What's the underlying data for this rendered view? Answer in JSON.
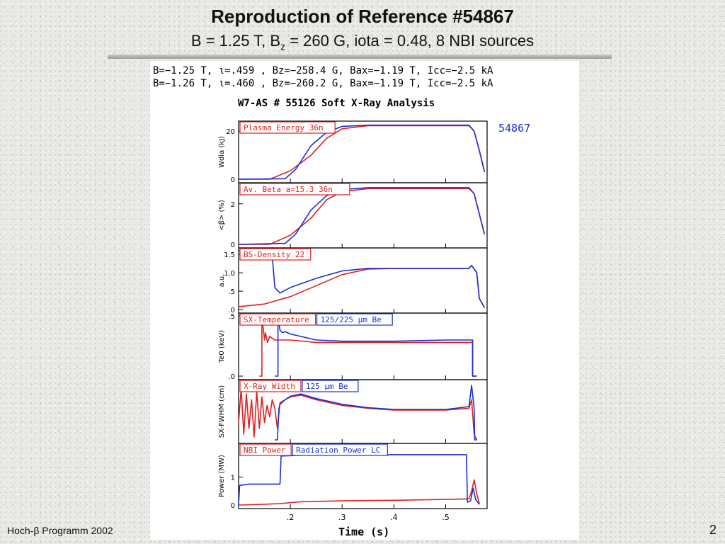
{
  "slide": {
    "title": "Reproduction of Reference #54867",
    "subtitle_main": "B = 1.25 T, B",
    "subtitle_sub": "z",
    "subtitle_rest": " = 260 G, iota = 0.48, 8 NBI sources",
    "footer_left": "Hoch-β Programm 2002",
    "page_number": "2"
  },
  "figure": {
    "param_line1": "B=−1.25 T, ι=.459   , Bz=−258.4 G, Bax=−1.19  T, Icc=−2.5   kA",
    "param_line2": "B=−1.26 T, ι=.460   , Bz=−260.2 G, Bax=−1.19  T, Icc=−2.5   kA",
    "header": "W7-AS # 55126  Soft X-Ray Analysis",
    "reference_shot": "54867",
    "xlabel": "Time (s)"
  },
  "colors": {
    "shot_55126": "#e02020",
    "ref_54867": "#1a2fd6",
    "axis": "#000000"
  },
  "chart_data": {
    "type": "line",
    "xlim": [
      0.1,
      0.58
    ],
    "x_ticks": [
      ".2",
      ".3",
      ".4",
      ".5"
    ],
    "x_tick_values": [
      0.2,
      0.3,
      0.4,
      0.5
    ],
    "panels": [
      {
        "key": "energy",
        "ylabel": "Wdia (kJ)",
        "ylim": [
          0,
          23
        ],
        "y_ticks": [
          {
            "label": "0",
            "value": 0
          },
          {
            "label": "20",
            "value": 20
          }
        ],
        "labels": [
          {
            "text": "Plasma Energy  36n",
            "color": "#e02020"
          }
        ],
        "series": [
          {
            "color": "#e02020",
            "x": [
              0.1,
              0.16,
              0.2,
              0.24,
              0.27,
              0.3,
              0.35,
              0.545,
              0.555,
              0.565,
              0.575
            ],
            "y": [
              0,
              0,
              3.5,
              10,
              17,
              21,
              22.3,
              22.3,
              20,
              12,
              3
            ]
          },
          {
            "color": "#1a2fd6",
            "x": [
              0.1,
              0.19,
              0.21,
              0.24,
              0.27,
              0.3,
              0.35,
              0.545,
              0.555,
              0.565,
              0.575
            ],
            "y": [
              0,
              0.2,
              4,
              14,
              19.5,
              22,
              22.5,
              22.5,
              20,
              12,
              3
            ]
          }
        ]
      },
      {
        "key": "beta",
        "ylabel": "<β> (%)",
        "ylim": [
          0,
          2.9
        ],
        "y_ticks": [
          {
            "label": "0",
            "value": 0
          },
          {
            "label": "2",
            "value": 2
          }
        ],
        "labels": [
          {
            "text": "Av. Beta  a=15.3  36n",
            "color": "#e02020"
          }
        ],
        "series": [
          {
            "color": "#e02020",
            "x": [
              0.1,
              0.16,
              0.2,
              0.24,
              0.27,
              0.3,
              0.35,
              0.545,
              0.555,
              0.565,
              0.575
            ],
            "y": [
              0,
              0,
              0.45,
              1.3,
              2.2,
              2.6,
              2.75,
              2.75,
              2.5,
              1.5,
              0.5
            ]
          },
          {
            "color": "#1a2fd6",
            "x": [
              0.1,
              0.19,
              0.21,
              0.24,
              0.27,
              0.3,
              0.35,
              0.545,
              0.555,
              0.565,
              0.575
            ],
            "y": [
              0,
              0.05,
              0.5,
              1.7,
              2.4,
              2.7,
              2.8,
              2.8,
              2.5,
              1.5,
              0.5
            ]
          }
        ]
      },
      {
        "key": "density",
        "ylabel": "a.u.",
        "ylim": [
          0,
          1.6
        ],
        "y_ticks": [
          {
            "label": ".0",
            "value": 0
          },
          {
            "label": ".5",
            "value": 0.5
          },
          {
            "label": "1.0",
            "value": 1.0
          },
          {
            "label": "1.5",
            "value": 1.5
          }
        ],
        "labels": [
          {
            "text": "BS-Density 22",
            "color": "#e02020"
          }
        ],
        "series": [
          {
            "color": "#e02020",
            "x": [
              0.1,
              0.15,
              0.2,
              0.25,
              0.3,
              0.35,
              0.4,
              0.545,
              0.55,
              0.56,
              0.565,
              0.575
            ],
            "y": [
              0.08,
              0.15,
              0.35,
              0.65,
              0.95,
              1.1,
              1.12,
              1.12,
              1.2,
              1.0,
              0.3,
              0.05
            ]
          },
          {
            "color": "#1a2fd6",
            "x": [
              0.1,
              0.12,
              0.15,
              0.165,
              0.17,
              0.18,
              0.2,
              0.25,
              0.3,
              0.35,
              0.4,
              0.545,
              0.55,
              0.56,
              0.565,
              0.575
            ],
            "y": [
              1.6,
              1.55,
              1.5,
              1.45,
              0.6,
              0.45,
              0.6,
              0.85,
              1.05,
              1.12,
              1.12,
              1.12,
              1.2,
              1.0,
              0.3,
              0.05
            ]
          }
        ]
      },
      {
        "key": "temperature",
        "ylabel": "Te0 (keV)",
        "ylim": [
          0,
          0.5
        ],
        "y_ticks": [
          {
            "label": ".0",
            "value": 0
          },
          {
            "label": ".5",
            "value": 0.5
          }
        ],
        "labels": [
          {
            "text": "SX-Temperature",
            "color": "#e02020"
          },
          {
            "text": "125/225  μm Be",
            "color": "#1a2fd6"
          }
        ],
        "series": [
          {
            "color": "#e02020",
            "x": [
              0.14,
              0.145,
              0.145,
              0.15,
              0.152,
              0.156,
              0.16,
              0.17,
              0.2,
              0.25,
              0.3,
              0.4,
              0.5,
              0.552,
              0.552,
              0.56
            ],
            "y": [
              0,
              0,
              0.5,
              0.3,
              0.36,
              0.28,
              0.33,
              0.3,
              0.3,
              0.28,
              0.28,
              0.28,
              0.28,
              0.28,
              0,
              0
            ]
          },
          {
            "color": "#1a2fd6",
            "x": [
              0.17,
              0.176,
              0.176,
              0.18,
              0.185,
              0.19,
              0.2,
              0.25,
              0.3,
              0.4,
              0.5,
              0.552,
              0.552,
              0.56
            ],
            "y": [
              0,
              0,
              0.5,
              0.38,
              0.36,
              0.37,
              0.35,
              0.3,
              0.29,
              0.29,
              0.3,
              0.3,
              0,
              0
            ]
          }
        ]
      },
      {
        "key": "width",
        "ylabel": "SX-FWHM (cm)",
        "ylim": [
          0,
          1
        ],
        "y_ticks": [],
        "labels": [
          {
            "text": "X-Ray Width",
            "color": "#e02020"
          },
          {
            "text": "125  μm Be",
            "color": "#1a2fd6"
          }
        ],
        "series": [
          {
            "color": "#e02020",
            "x": [
              0.1,
              0.105,
              0.11,
              0.115,
              0.12,
              0.125,
              0.13,
              0.135,
              0.14,
              0.145,
              0.15,
              0.155,
              0.16,
              0.165,
              0.17,
              0.175,
              0.18,
              0.19,
              0.2,
              0.22,
              0.25,
              0.3,
              0.35,
              0.4,
              0.5,
              0.545,
              0.55,
              0.555,
              0.56
            ],
            "y": [
              0.3,
              0.9,
              0.1,
              0.8,
              0.2,
              0.7,
              0.05,
              0.85,
              0.2,
              0.75,
              0.3,
              0.6,
              0.4,
              0.7,
              0.55,
              0.2,
              0.65,
              0.7,
              0.75,
              0.78,
              0.7,
              0.6,
              0.55,
              0.52,
              0.52,
              0.55,
              0.7,
              0.1,
              0
            ]
          },
          {
            "color": "#1a2fd6",
            "x": [
              0.17,
              0.175,
              0.178,
              0.18,
              0.19,
              0.2,
              0.22,
              0.25,
              0.3,
              0.35,
              0.4,
              0.5,
              0.545,
              0.55,
              0.555,
              0.556,
              0.56
            ],
            "y": [
              0,
              0,
              0.55,
              0.62,
              0.7,
              0.76,
              0.8,
              0.72,
              0.62,
              0.56,
              0.53,
              0.53,
              0.58,
              0.95,
              0.55,
              0,
              0
            ]
          }
        ]
      },
      {
        "key": "power",
        "ylabel": "Power (MW)",
        "ylim": [
          0,
          2.1
        ],
        "y_ticks": [
          {
            "label": "0",
            "value": 0
          },
          {
            "label": "1",
            "value": 1
          }
        ],
        "labels": [
          {
            "text": "NBI Power",
            "color": "#e02020"
          },
          {
            "text": "Radiation Power LC",
            "color": "#1a2fd6"
          }
        ],
        "series": [
          {
            "color": "#e02020",
            "x": [
              0.1,
              0.14,
              0.18,
              0.22,
              0.3,
              0.4,
              0.5,
              0.545,
              0.55,
              0.555,
              0.56,
              0.565
            ],
            "y": [
              0,
              0.02,
              0.05,
              0.12,
              0.15,
              0.17,
              0.2,
              0.22,
              0.5,
              0.9,
              0.4,
              0.05
            ]
          },
          {
            "color": "#1a2fd6",
            "x": [
              0.1,
              0.102,
              0.12,
              0.14,
              0.175,
              0.18,
              0.182,
              0.25,
              0.35,
              0.45,
              0.54,
              0.542,
              0.548,
              0.553,
              0.558,
              0.565
            ],
            "y": [
              0,
              0.7,
              0.75,
              0.75,
              0.75,
              0.75,
              1.75,
              1.8,
              1.8,
              1.8,
              1.8,
              0.1,
              0.15,
              0.6,
              0.2,
              0.02
            ]
          }
        ]
      }
    ]
  }
}
